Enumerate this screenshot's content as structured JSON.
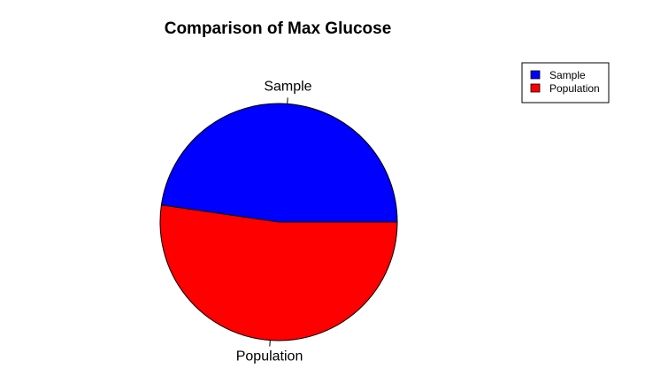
{
  "chart_data": {
    "type": "pie",
    "title": "Comparison of Max Glucose",
    "categories": [
      "Sample",
      "Population"
    ],
    "values": [
      47.7,
      52.3
    ],
    "colors": [
      "#0000ff",
      "#ff0000"
    ],
    "legend": {
      "position": "top-right",
      "entries": [
        "Sample",
        "Population"
      ]
    }
  }
}
